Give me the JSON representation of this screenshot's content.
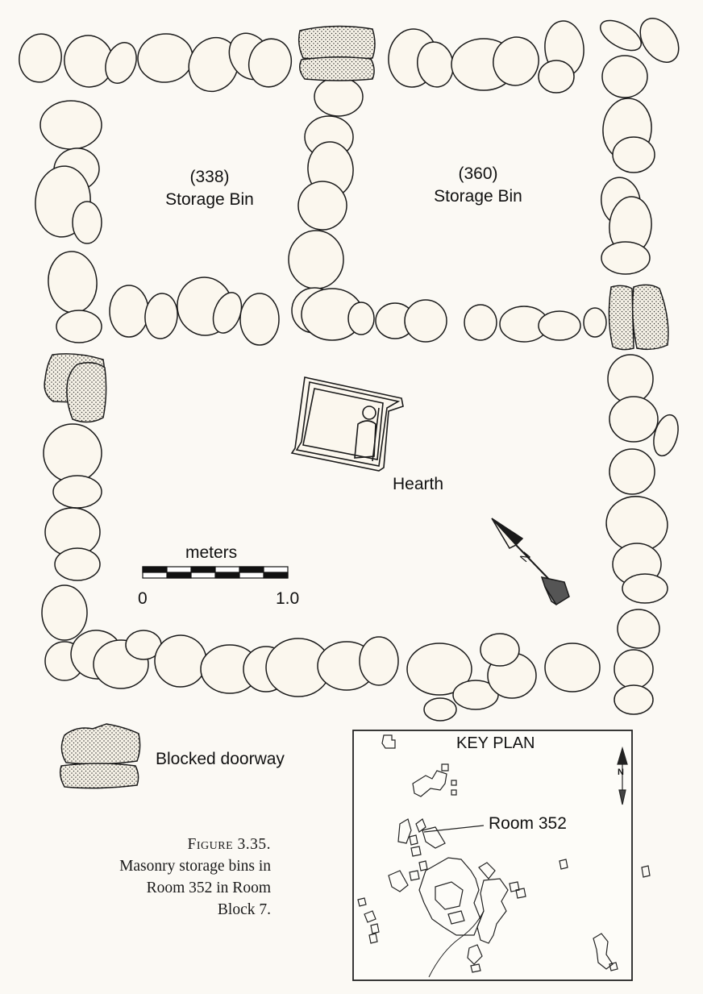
{
  "bins": [
    {
      "number": "(338)",
      "name": "Storage Bin"
    },
    {
      "number": "(360)",
      "name": "Storage Bin"
    }
  ],
  "hearth_label": "Hearth",
  "scale": {
    "unit": "meters",
    "start": "0",
    "end": "1.0"
  },
  "legend": {
    "blocked_doorway": "Blocked doorway"
  },
  "key_plan": {
    "title": "KEY PLAN",
    "room_label": "Room 352",
    "north": "N"
  },
  "north_arrow": {
    "label": "N"
  },
  "caption": {
    "figure": "Figure 3.35.",
    "lines": [
      "Masonry storage bins in",
      "Room 352 in Room",
      "Block 7."
    ]
  },
  "colors": {
    "stone_fill": "#fbf7ee",
    "stroke": "#1a1a1a",
    "stipple": "#333333"
  }
}
